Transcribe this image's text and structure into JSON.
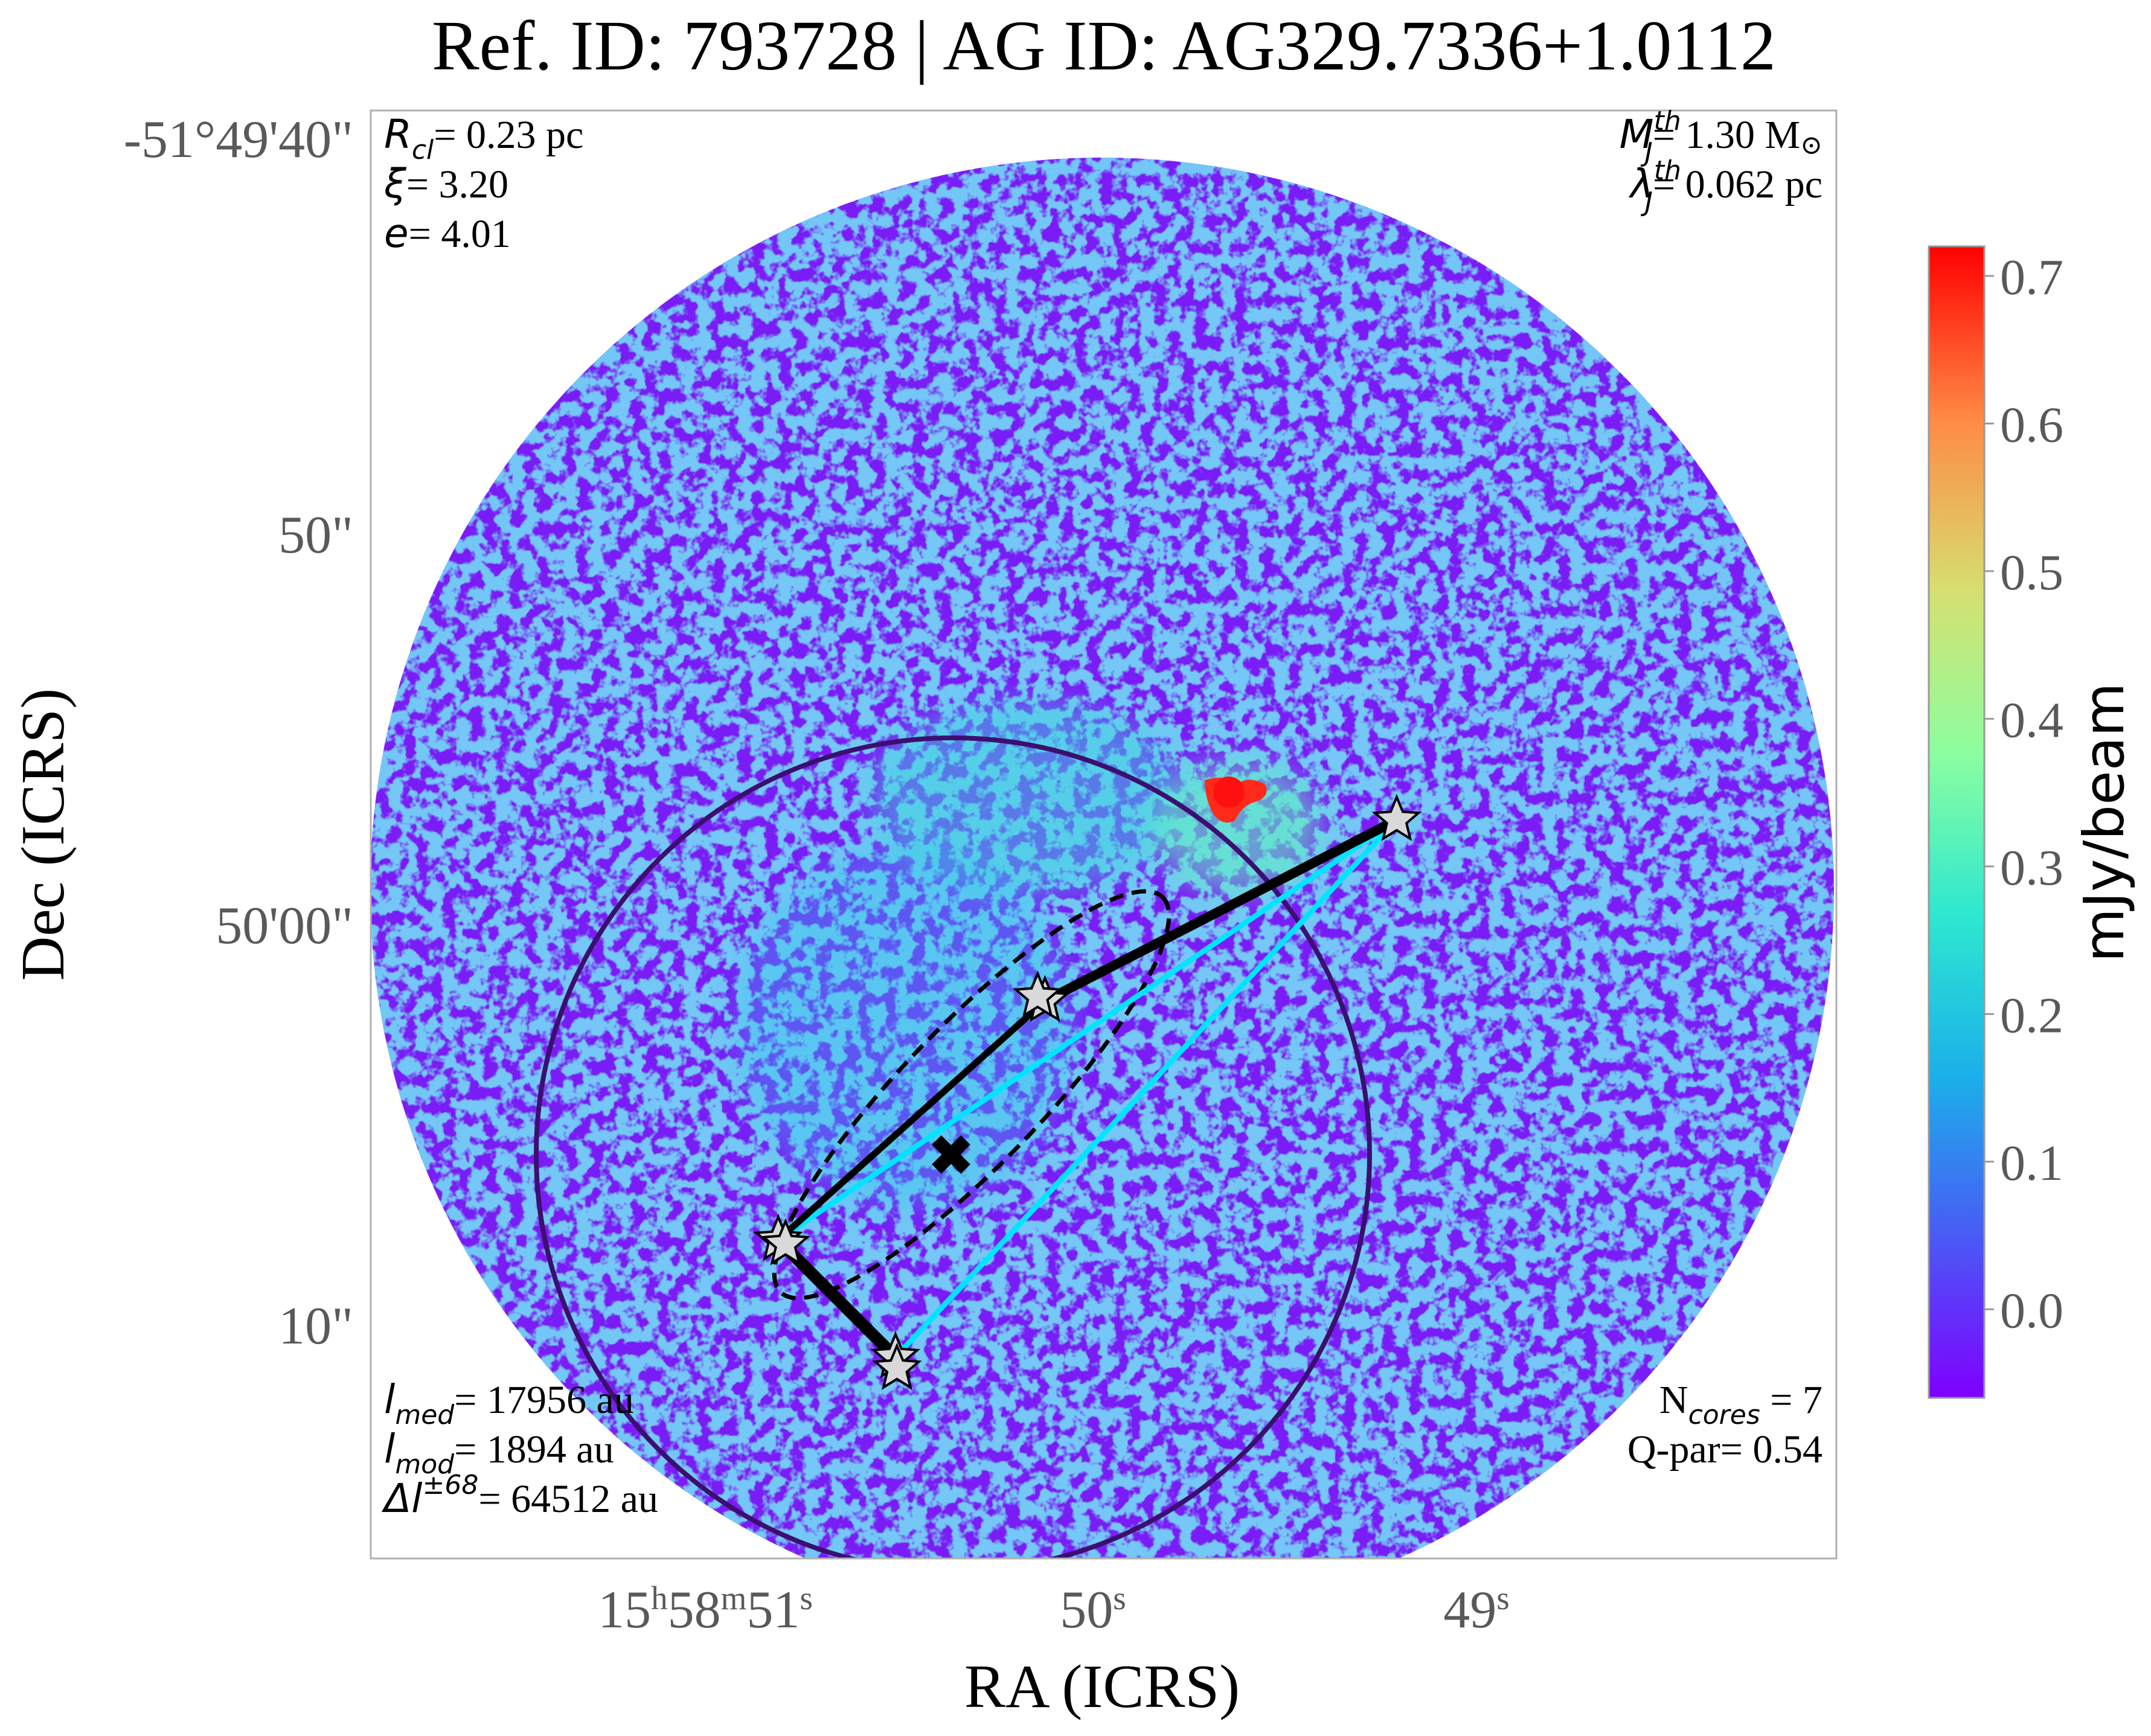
{
  "chart_data": {
    "type": "heatmap",
    "title": "Ref. ID: 793728 | AG ID: AG329.7336+1.0112",
    "xlabel": "RA (ICRS)",
    "ylabel": "Dec (ICRS)",
    "x_ticks": [
      {
        "h": "15",
        "m": "58",
        "s": "51"
      },
      {
        "s": "50"
      },
      {
        "s": "49"
      }
    ],
    "y_ticks": [
      "-51°49'40\"",
      "50\"",
      "50'00\"",
      "10\""
    ],
    "colorbar": {
      "label": "mJy/beam",
      "ticks": [
        "0.0",
        "0.1",
        "0.2",
        "0.3",
        "0.4",
        "0.5",
        "0.6",
        "0.7"
      ],
      "range": [
        -0.06,
        0.72
      ],
      "colormap": "rainbow"
    },
    "annotations": {
      "top_left": [
        {
          "sym": "R",
          "sub": "cl",
          "text": "= 0.23 pc"
        },
        {
          "sym": "ξ",
          "text": "= 3.20"
        },
        {
          "sym": "e",
          "text": "= 4.01"
        }
      ],
      "top_right": [
        {
          "sym": "M",
          "sup": "th",
          "sub": "J",
          "text": "= 1.30 M",
          "suffix": "⊙"
        },
        {
          "sym": "λ",
          "sup": "th",
          "sub": "J",
          "text": "= 0.062 pc"
        }
      ],
      "bottom_left": [
        {
          "sym": "l",
          "sub": "med",
          "text": "= 17956 au"
        },
        {
          "sym": "l",
          "sub": "mod",
          "text": "= 1894 au"
        },
        {
          "sym": "Δl",
          "sup": "±68",
          "text": "= 64512 au"
        }
      ],
      "bottom_right": [
        {
          "prefix": "N",
          "sub": "cores",
          "text": " = 7"
        },
        {
          "text": "Q-par= 0.54"
        }
      ]
    },
    "cores": [
      {
        "id": "c1",
        "x": 0.7,
        "y": 0.51
      },
      {
        "id": "c2",
        "x": 0.46,
        "y": 0.385
      },
      {
        "id": "c3",
        "x": 0.455,
        "y": 0.388
      },
      {
        "id": "c4",
        "x": 0.278,
        "y": 0.22
      },
      {
        "id": "c5",
        "x": 0.283,
        "y": 0.217
      },
      {
        "id": "c6",
        "x": 0.358,
        "y": 0.139
      },
      {
        "id": "c7",
        "x": 0.359,
        "y": 0.131
      }
    ],
    "mst_edges": [
      [
        "c1",
        "c2"
      ],
      [
        "c2",
        "c4"
      ],
      [
        "c4",
        "c6"
      ]
    ],
    "hull_edges": [
      [
        "c1",
        "c4"
      ],
      [
        "c4",
        "c6"
      ],
      [
        "c6",
        "c1"
      ]
    ],
    "colors": {
      "hull": "#00e5ff",
      "mst": "#000000",
      "clump_circle": "#3b0f70",
      "ellipse": "#000000",
      "core_fill": "#d9d9d9",
      "disk_low": "#7a1cf5",
      "noise": "#2cc8ee",
      "hot": "#ff1a1a",
      "axis_text": "#595959"
    }
  }
}
